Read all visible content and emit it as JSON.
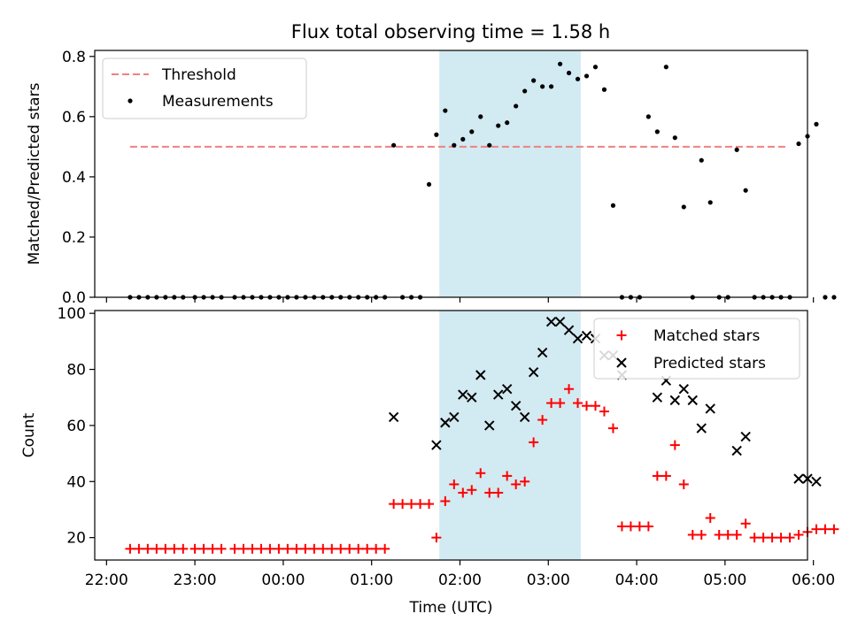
{
  "figure": {
    "title": "Flux total observing time = 1.58 h"
  },
  "chart_data": [
    {
      "type": "scatter",
      "ylabel": "Matched/Predicted stars",
      "xlabel": "",
      "ylim": [
        0,
        0.82
      ],
      "yticks": [
        "0.0",
        "0.2",
        "0.4",
        "0.6",
        "0.8"
      ],
      "yticks_values": [
        0,
        0.2,
        0.4,
        0.6,
        0.8
      ],
      "legend_position": "upper-left",
      "threshold": {
        "name": "Threshold",
        "value": 0.5,
        "x_start": "22:16",
        "x_end": "05:41",
        "color": "#f08080"
      },
      "highlight_span": {
        "x_start": "01:46",
        "x_end": "03:22",
        "color": "#add8e6"
      },
      "series": [
        {
          "name": "Measurements",
          "marker": "dot",
          "color": "#000000",
          "points": [
            [
              "22:16",
              0
            ],
            [
              "22:22",
              0
            ],
            [
              "22:28",
              0
            ],
            [
              "22:34",
              0
            ],
            [
              "22:40",
              0
            ],
            [
              "22:46",
              0
            ],
            [
              "22:52",
              0
            ],
            [
              "23:00",
              0
            ],
            [
              "23:06",
              0
            ],
            [
              "23:12",
              0
            ],
            [
              "23:18",
              0
            ],
            [
              "23:27",
              0
            ],
            [
              "23:33",
              0
            ],
            [
              "23:39",
              0
            ],
            [
              "23:45",
              0
            ],
            [
              "23:51",
              0
            ],
            [
              "23:57",
              0
            ],
            [
              "00:03",
              0
            ],
            [
              "00:09",
              0
            ],
            [
              "00:15",
              0
            ],
            [
              "00:21",
              0
            ],
            [
              "00:27",
              0
            ],
            [
              "00:33",
              0
            ],
            [
              "00:39",
              0
            ],
            [
              "00:45",
              0
            ],
            [
              "00:51",
              0
            ],
            [
              "00:57",
              0
            ],
            [
              "01:03",
              0
            ],
            [
              "01:09",
              0
            ],
            [
              "01:15",
              0.505
            ],
            [
              "01:21",
              0
            ],
            [
              "01:27",
              0
            ],
            [
              "01:33",
              0
            ],
            [
              "01:39",
              0.375
            ],
            [
              "01:44",
              0.54
            ],
            [
              "01:50",
              0.62
            ],
            [
              "01:56",
              0.505
            ],
            [
              "02:02",
              0.525
            ],
            [
              "02:08",
              0.55
            ],
            [
              "02:14",
              0.6
            ],
            [
              "02:20",
              0.505
            ],
            [
              "02:26",
              0.57
            ],
            [
              "02:32",
              0.58
            ],
            [
              "02:38",
              0.635
            ],
            [
              "02:44",
              0.685
            ],
            [
              "02:50",
              0.72
            ],
            [
              "02:56",
              0.7
            ],
            [
              "03:02",
              0.7
            ],
            [
              "03:08",
              0.775
            ],
            [
              "03:14",
              0.745
            ],
            [
              "03:20",
              0.725
            ],
            [
              "03:26",
              0.735
            ],
            [
              "03:32",
              0.765
            ],
            [
              "03:38",
              0.69
            ],
            [
              "03:44",
              0.305
            ],
            [
              "03:50",
              0
            ],
            [
              "03:56",
              0
            ],
            [
              "04:02",
              0
            ],
            [
              "04:08",
              0.6
            ],
            [
              "04:14",
              0.55
            ],
            [
              "04:20",
              0.765
            ],
            [
              "04:26",
              0.53
            ],
            [
              "04:32",
              0.3
            ],
            [
              "04:38",
              0
            ],
            [
              "04:44",
              0.455
            ],
            [
              "04:50",
              0.315
            ],
            [
              "04:56",
              0
            ],
            [
              "05:02",
              0
            ],
            [
              "05:08",
              0.49
            ],
            [
              "05:14",
              0.355
            ],
            [
              "05:20",
              0
            ],
            [
              "05:26",
              0
            ],
            [
              "05:32",
              0
            ],
            [
              "05:38",
              0
            ],
            [
              "05:44",
              0
            ],
            [
              "05:50",
              0.51
            ],
            [
              "05:56",
              0.535
            ],
            [
              "06:02",
              0.575
            ],
            [
              "06:08",
              0
            ],
            [
              "06:14",
              0
            ]
          ]
        }
      ]
    },
    {
      "type": "scatter",
      "ylabel": "Count",
      "xlabel": "Time (UTC)",
      "ylim": [
        12,
        101
      ],
      "yticks": [
        "20",
        "40",
        "60",
        "80",
        "100"
      ],
      "yticks_values": [
        20,
        40,
        60,
        80,
        100
      ],
      "xticks": [
        "22:00",
        "23:00",
        "00:00",
        "01:00",
        "02:00",
        "03:00",
        "04:00",
        "05:00",
        "06:00"
      ],
      "legend_position": "upper-right",
      "highlight_span": {
        "x_start": "01:46",
        "x_end": "03:22",
        "color": "#add8e6"
      },
      "series": [
        {
          "name": "Matched stars",
          "marker": "plus",
          "color": "#ff0000",
          "points": [
            [
              "22:16",
              16
            ],
            [
              "22:22",
              16
            ],
            [
              "22:28",
              16
            ],
            [
              "22:34",
              16
            ],
            [
              "22:40",
              16
            ],
            [
              "22:46",
              16
            ],
            [
              "22:52",
              16
            ],
            [
              "23:00",
              16
            ],
            [
              "23:06",
              16
            ],
            [
              "23:12",
              16
            ],
            [
              "23:18",
              16
            ],
            [
              "23:27",
              16
            ],
            [
              "23:33",
              16
            ],
            [
              "23:39",
              16
            ],
            [
              "23:45",
              16
            ],
            [
              "23:51",
              16
            ],
            [
              "23:57",
              16
            ],
            [
              "00:03",
              16
            ],
            [
              "00:09",
              16
            ],
            [
              "00:15",
              16
            ],
            [
              "00:21",
              16
            ],
            [
              "00:27",
              16
            ],
            [
              "00:33",
              16
            ],
            [
              "00:39",
              16
            ],
            [
              "00:45",
              16
            ],
            [
              "00:51",
              16
            ],
            [
              "00:57",
              16
            ],
            [
              "01:03",
              16
            ],
            [
              "01:09",
              16
            ],
            [
              "01:15",
              32
            ],
            [
              "01:21",
              32
            ],
            [
              "01:27",
              32
            ],
            [
              "01:33",
              32
            ],
            [
              "01:39",
              32
            ],
            [
              "01:44",
              20
            ],
            [
              "01:50",
              33
            ],
            [
              "01:56",
              39
            ],
            [
              "02:02",
              36
            ],
            [
              "02:08",
              37
            ],
            [
              "02:14",
              43
            ],
            [
              "02:20",
              36
            ],
            [
              "02:26",
              36
            ],
            [
              "02:32",
              42
            ],
            [
              "02:38",
              39
            ],
            [
              "02:44",
              40
            ],
            [
              "02:50",
              54
            ],
            [
              "02:56",
              62
            ],
            [
              "03:02",
              68
            ],
            [
              "03:08",
              68
            ],
            [
              "03:14",
              73
            ],
            [
              "03:20",
              68
            ],
            [
              "03:26",
              67
            ],
            [
              "03:32",
              67
            ],
            [
              "03:38",
              65
            ],
            [
              "03:44",
              59
            ],
            [
              "03:50",
              24
            ],
            [
              "03:56",
              24
            ],
            [
              "04:02",
              24
            ],
            [
              "04:08",
              24
            ],
            [
              "04:14",
              42
            ],
            [
              "04:20",
              42
            ],
            [
              "04:26",
              53
            ],
            [
              "04:32",
              39
            ],
            [
              "04:38",
              21
            ],
            [
              "04:44",
              21
            ],
            [
              "04:50",
              27
            ],
            [
              "04:56",
              21
            ],
            [
              "05:02",
              21
            ],
            [
              "05:08",
              21
            ],
            [
              "05:14",
              25
            ],
            [
              "05:20",
              20
            ],
            [
              "05:26",
              20
            ],
            [
              "05:32",
              20
            ],
            [
              "05:38",
              20
            ],
            [
              "05:44",
              20
            ],
            [
              "05:50",
              21
            ],
            [
              "05:56",
              22
            ],
            [
              "06:02",
              23
            ],
            [
              "06:08",
              23
            ],
            [
              "06:14",
              23
            ]
          ]
        },
        {
          "name": "Predicted stars",
          "marker": "x",
          "color": "#000000",
          "points": [
            [
              "01:15",
              63
            ],
            [
              "01:44",
              53
            ],
            [
              "01:50",
              61
            ],
            [
              "01:56",
              63
            ],
            [
              "02:02",
              71
            ],
            [
              "02:08",
              70
            ],
            [
              "02:14",
              78
            ],
            [
              "02:20",
              60
            ],
            [
              "02:26",
              71
            ],
            [
              "02:32",
              73
            ],
            [
              "02:38",
              67
            ],
            [
              "02:44",
              63
            ],
            [
              "02:50",
              79
            ],
            [
              "02:56",
              86
            ],
            [
              "03:02",
              97
            ],
            [
              "03:08",
              97
            ],
            [
              "03:14",
              94
            ],
            [
              "03:20",
              91
            ],
            [
              "03:26",
              92
            ],
            [
              "03:32",
              91
            ],
            [
              "03:38",
              85
            ],
            [
              "03:44",
              85
            ],
            [
              "03:50",
              78
            ],
            [
              "04:14",
              70
            ],
            [
              "04:20",
              76
            ],
            [
              "04:26",
              69
            ],
            [
              "04:32",
              73
            ],
            [
              "04:38",
              69
            ],
            [
              "04:44",
              59
            ],
            [
              "04:50",
              66
            ],
            [
              "05:08",
              51
            ],
            [
              "05:14",
              56
            ],
            [
              "05:50",
              41
            ],
            [
              "05:56",
              41
            ],
            [
              "06:02",
              40
            ]
          ]
        }
      ]
    }
  ]
}
